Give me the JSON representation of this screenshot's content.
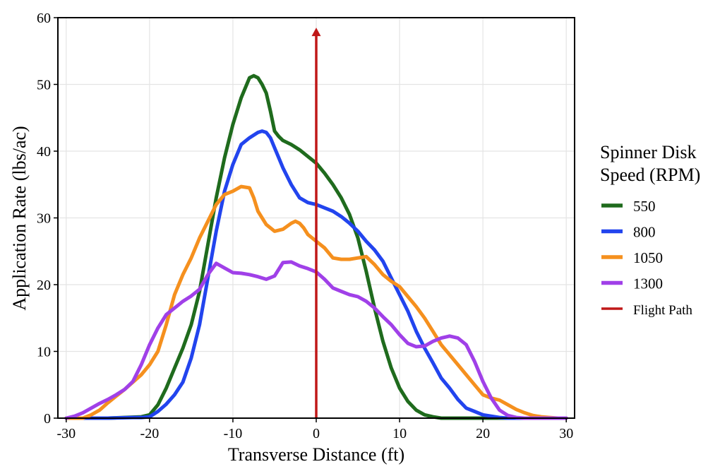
{
  "chart_data": {
    "type": "line",
    "title": "",
    "xlabel": "Transverse Distance (ft)",
    "ylabel": "Application Rate (lbs/ac)",
    "xlim": [
      -31,
      31
    ],
    "ylim": [
      0,
      60
    ],
    "xticks": [
      -30,
      -20,
      -10,
      0,
      10,
      20,
      30
    ],
    "yticks": [
      0,
      10,
      20,
      30,
      40,
      50,
      60
    ],
    "grid": true,
    "legend": {
      "title_lines": [
        "Spinner Disk",
        "Speed (RPM)"
      ],
      "position": "right"
    },
    "series": [
      {
        "name": "550",
        "color": "#1f6b1d",
        "x": [
          -30,
          -25,
          -21,
          -20,
          -19,
          -18,
          -17,
          -16,
          -15,
          -14,
          -13,
          -12,
          -11,
          -10,
          -9,
          -8,
          -7.5,
          -7,
          -6.5,
          -6,
          -5.5,
          -5,
          -4.5,
          -4,
          -3.5,
          -3,
          -2,
          -1,
          0,
          1,
          2,
          3,
          4,
          5,
          6,
          7,
          8,
          9,
          10,
          11,
          12,
          13,
          14,
          15,
          16,
          20,
          25,
          30
        ],
        "y": [
          0,
          0,
          0.2,
          0.5,
          2,
          4.5,
          7.5,
          10.5,
          14,
          19,
          26,
          33,
          39,
          44,
          48,
          51,
          51.3,
          51,
          50,
          48.7,
          46,
          43,
          42.2,
          41.6,
          41.3,
          41,
          40.2,
          39.2,
          38.2,
          36.7,
          35,
          33,
          30.5,
          27,
          22,
          16.5,
          11.5,
          7.5,
          4.5,
          2.5,
          1.2,
          0.5,
          0.2,
          0,
          0,
          0,
          0,
          0
        ]
      },
      {
        "name": "800",
        "color": "#2244ee",
        "x": [
          -30,
          -25,
          -22,
          -21,
          -20,
          -19,
          -18,
          -17,
          -16,
          -15,
          -14,
          -13,
          -12,
          -11,
          -10,
          -9,
          -8,
          -7,
          -6.5,
          -6,
          -5.5,
          -5,
          -4.5,
          -4,
          -3,
          -2,
          -1,
          0,
          1,
          2,
          3,
          4,
          5,
          6,
          7,
          8,
          9,
          10,
          11,
          12,
          13,
          14,
          15,
          16,
          17,
          18,
          19,
          20,
          21,
          22,
          23,
          25,
          30
        ],
        "y": [
          0,
          0,
          0.1,
          0.1,
          0.2,
          1,
          2.1,
          3.5,
          5.4,
          9,
          14,
          21,
          28,
          34,
          38,
          41,
          42,
          42.8,
          43,
          42.8,
          42,
          40.5,
          39,
          37.5,
          35,
          33,
          32.3,
          32,
          31.5,
          31,
          30.2,
          29.2,
          28,
          26.5,
          25.2,
          23.5,
          21,
          18.5,
          16,
          13,
          10.5,
          8.3,
          6,
          4.5,
          2.8,
          1.5,
          1,
          0.5,
          0.3,
          0.1,
          0,
          0,
          0
        ]
      },
      {
        "name": "1050",
        "color": "#f5901e",
        "x": [
          -30,
          -28,
          -27,
          -26,
          -25,
          -24,
          -23,
          -22,
          -21,
          -20,
          -19,
          -18,
          -17,
          -16,
          -15,
          -14,
          -13,
          -12,
          -11,
          -10,
          -9,
          -8,
          -7.5,
          -7,
          -6.5,
          -6,
          -5,
          -4,
          -3,
          -2.5,
          -2,
          -1.5,
          -1,
          0,
          1,
          2,
          3,
          4,
          5,
          6,
          7,
          8,
          9,
          10,
          11,
          12,
          13,
          14,
          15,
          16,
          17,
          18,
          19,
          20,
          21,
          22,
          23,
          24,
          25,
          26,
          27,
          28,
          29,
          30
        ],
        "y": [
          0,
          0,
          0.5,
          1.2,
          2.3,
          3.3,
          4.3,
          5.4,
          6.5,
          8,
          10,
          14,
          18.5,
          21.5,
          24,
          27,
          29.5,
          32,
          33.5,
          34,
          34.7,
          34.5,
          33,
          31,
          30,
          29,
          28,
          28.3,
          29.2,
          29.5,
          29.2,
          28.5,
          27.5,
          26.5,
          25.5,
          24,
          23.8,
          23.8,
          24,
          24.2,
          23,
          21.5,
          20.5,
          19.7,
          18.2,
          16.7,
          15,
          13,
          11,
          9.5,
          8,
          6.5,
          5,
          3.5,
          3,
          2.7,
          2,
          1.3,
          0.8,
          0.4,
          0.2,
          0.1,
          0,
          0
        ]
      },
      {
        "name": "1300",
        "color": "#a040e8",
        "x": [
          -30,
          -29,
          -28,
          -27,
          -26,
          -25,
          -24,
          -23,
          -22,
          -21,
          -20,
          -19,
          -18,
          -17,
          -16,
          -15,
          -14,
          -13,
          -12,
          -11,
          -10,
          -9,
          -8,
          -7,
          -6,
          -5,
          -4,
          -3,
          -2,
          -1,
          0,
          1,
          2,
          3,
          4,
          5,
          6,
          7,
          8,
          9,
          10,
          11,
          12,
          13,
          14,
          15,
          16,
          17,
          18,
          19,
          20,
          21,
          22,
          23,
          24,
          25,
          30
        ],
        "y": [
          0,
          0.3,
          0.8,
          1.5,
          2.2,
          2.8,
          3.5,
          4.3,
          5.5,
          8,
          11,
          13.5,
          15.5,
          16.5,
          17.5,
          18.3,
          19.3,
          21.5,
          23.2,
          22.5,
          21.8,
          21.7,
          21.5,
          21.2,
          20.8,
          21.3,
          23.3,
          23.4,
          22.8,
          22.4,
          21.9,
          20.8,
          19.5,
          19,
          18.5,
          18.2,
          17.5,
          16.5,
          15.2,
          14,
          12.5,
          11.2,
          10.7,
          10.8,
          11.5,
          12,
          12.3,
          12,
          11,
          8.5,
          5.5,
          3,
          1.2,
          0.4,
          0.1,
          0,
          0
        ]
      }
    ],
    "annotations": [
      {
        "name": "Flight Path",
        "type": "arrow",
        "x": 0,
        "y_from": 0,
        "y_to": 58.5,
        "color": "#c01818"
      }
    ]
  }
}
